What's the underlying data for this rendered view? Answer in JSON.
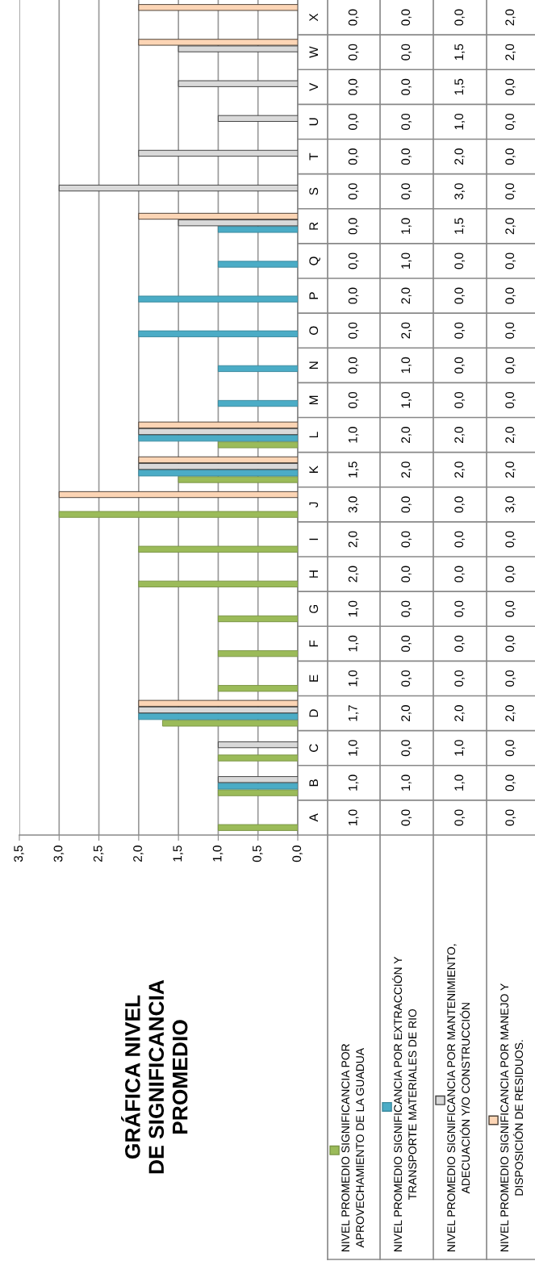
{
  "chart_data": {
    "type": "bar",
    "orientation": "horizontal",
    "title": "GRÁFICA NIVEL DE SIGNIFICANCIA PROMEDIO",
    "categories": [
      "X",
      "W",
      "V",
      "U",
      "T",
      "S",
      "R",
      "Q",
      "P",
      "O",
      "N",
      "M",
      "L",
      "K",
      "J",
      "I",
      "H",
      "G",
      "F",
      "E",
      "D",
      "C",
      "B",
      "A"
    ],
    "series": [
      {
        "name": "NIVEL PROMEDIO SIGNIFICANCIA POR APROVECHAMIENTO DE LA GUADUA",
        "color": "#9bbb59",
        "values": [
          0,
          0,
          0,
          0,
          0,
          0,
          0,
          0,
          0,
          0,
          0,
          0,
          1.0,
          1.5,
          3.0,
          2.0,
          2.0,
          1.0,
          1.0,
          1.0,
          1.7,
          1.0,
          1.0,
          1.0
        ],
        "value_labels": [
          "0,0",
          "0,0",
          "0,0",
          "0,0",
          "0,0",
          "0,0",
          "0,0",
          "0,0",
          "0,0",
          "0,0",
          "0,0",
          "0,0",
          "1,0",
          "1,5",
          "3,0",
          "2,0",
          "2,0",
          "1,0",
          "1,0",
          "1,0",
          "1,7",
          "1,0",
          "1,0",
          "1,0"
        ]
      },
      {
        "name": "NIVEL PROMEDIO SIGNIFICANCIA POR EXTRACCIÓN Y TRANSPORTE MATERIALES DE RIO",
        "color": "#4bacc6",
        "values": [
          0,
          0,
          0,
          0,
          0,
          0,
          1.0,
          1.0,
          2.0,
          2.0,
          1.0,
          1.0,
          2.0,
          2.0,
          0,
          0,
          0,
          0,
          0,
          0,
          2.0,
          0,
          1.0,
          0
        ],
        "value_labels": [
          "0,0",
          "0,0",
          "0,0",
          "0,0",
          "0,0",
          "0,0",
          "1,0",
          "1,0",
          "2,0",
          "2,0",
          "1,0",
          "1,0",
          "2,0",
          "2,0",
          "0,0",
          "0,0",
          "0,0",
          "0,0",
          "0,0",
          "0,0",
          "2,0",
          "0,0",
          "1,0",
          "0,0"
        ]
      },
      {
        "name": "NIVEL PROMEDIO SIGNIFICANCIA POR MANTENIMIENTO, ADECUACIÓN Y/O CONSTRUCCIÓN",
        "color": "#d9d9d9",
        "values": [
          0,
          1.5,
          1.5,
          1.0,
          2.0,
          3.0,
          1.5,
          0,
          0,
          0,
          0,
          0,
          2.0,
          2.0,
          0,
          0,
          0,
          0,
          0,
          0,
          2.0,
          1.0,
          1.0,
          0
        ],
        "value_labels": [
          "0,0",
          "1,5",
          "1,5",
          "1,0",
          "2,0",
          "3,0",
          "1,5",
          "0,0",
          "0,0",
          "0,0",
          "0,0",
          "0,0",
          "2,0",
          "2,0",
          "0,0",
          "0,0",
          "0,0",
          "0,0",
          "0,0",
          "0,0",
          "2,0",
          "1,0",
          "1,0",
          "0,0"
        ]
      },
      {
        "name": "NIVEL PROMEDIO SIGNIFICANCIA POR MANEJO Y DISPOSICIÓN DE RESIDUOS.",
        "color": "#fcd5b5",
        "values": [
          2.0,
          2.0,
          0,
          0,
          0,
          0,
          2.0,
          0,
          0,
          0,
          0,
          0,
          2.0,
          2.0,
          3.0,
          0,
          0,
          0,
          0,
          0,
          2.0,
          0,
          0,
          0
        ],
        "value_labels": [
          "2,0",
          "2,0",
          "0,0",
          "0,0",
          "0,0",
          "0,0",
          "2,0",
          "0,0",
          "0,0",
          "0,0",
          "0,0",
          "0,0",
          "2,0",
          "2,0",
          "3,0",
          "0,0",
          "0,0",
          "0,0",
          "0,0",
          "0,0",
          "2,0",
          "0,0",
          "0,0",
          "0,0"
        ]
      }
    ],
    "xlim": [
      3.5,
      0
    ],
    "xticks": [
      {
        "value": 3.5,
        "label": "3,5"
      },
      {
        "value": 3.0,
        "label": "3,0"
      },
      {
        "value": 2.5,
        "label": "2,5"
      },
      {
        "value": 2.0,
        "label": "2,0"
      },
      {
        "value": 1.5,
        "label": "1,5"
      },
      {
        "value": 1.0,
        "label": "1,0"
      },
      {
        "value": 0.5,
        "label": "0,5"
      },
      {
        "value": 0,
        "label": "0,0"
      }
    ],
    "grid": "x",
    "legend": "bottom"
  }
}
